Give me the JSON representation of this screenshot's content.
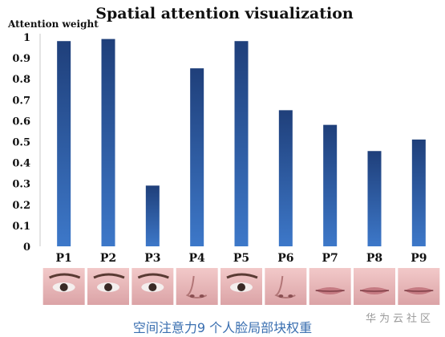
{
  "chart_data": {
    "type": "bar",
    "title": "Spatial attention visualization",
    "ylabel": "Attention weight",
    "xlabel": "",
    "categories": [
      "P1",
      "P2",
      "P3",
      "P4",
      "P5",
      "P6",
      "P7",
      "P8",
      "P9"
    ],
    "values": [
      0.98,
      0.99,
      0.29,
      0.85,
      0.98,
      0.65,
      0.58,
      0.455,
      0.51
    ],
    "ylim": [
      0,
      1
    ],
    "yticks": [
      "0",
      "0.1",
      "0.2",
      "0.3",
      "0.4",
      "0.5",
      "0.6",
      "0.7",
      "0.8",
      "0.9",
      "1"
    ],
    "grid": false,
    "bar_color_top": "#1f3f7a",
    "bar_color_bottom": "#3d78c9"
  },
  "patches": [
    {
      "label": "P1",
      "feature": "eye"
    },
    {
      "label": "P2",
      "feature": "eye"
    },
    {
      "label": "P3",
      "feature": "eye"
    },
    {
      "label": "P4",
      "feature": "nose"
    },
    {
      "label": "P5",
      "feature": "eye"
    },
    {
      "label": "P6",
      "feature": "nose"
    },
    {
      "label": "P7",
      "feature": "mouth"
    },
    {
      "label": "P8",
      "feature": "mouth"
    },
    {
      "label": "P9",
      "feature": "mouth"
    }
  ],
  "caption": "空间注意力9 个人脸局部块权重",
  "watermark": "华为云社区"
}
